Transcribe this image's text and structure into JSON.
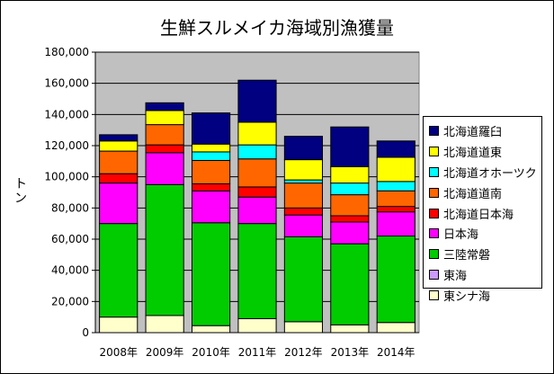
{
  "chart_data": {
    "type": "bar",
    "stacked": true,
    "title": "生鮮スルメイカ海域別漁獲量",
    "ylabel": "トン",
    "xlabel": "",
    "ylim": [
      0,
      180000
    ],
    "yticks": [
      "0",
      "20,000",
      "40,000",
      "60,000",
      "80,000",
      "100,000",
      "120,000",
      "140,000",
      "160,000",
      "180,000"
    ],
    "ytick_values": [
      0,
      20000,
      40000,
      60000,
      80000,
      100000,
      120000,
      140000,
      160000,
      180000
    ],
    "categories": [
      "2008年",
      "2009年",
      "2010年",
      "2011年",
      "2012年",
      "2013年",
      "2014年"
    ],
    "plot_background": "#C0C0C0",
    "grid": true,
    "legend_position": "right",
    "series": [
      {
        "name": "東シナ海",
        "color": "#FFFFCC",
        "values": [
          10000,
          11000,
          4500,
          9000,
          7000,
          5000,
          6500
        ]
      },
      {
        "name": "東海",
        "color": "#CC99FF",
        "values": [
          0,
          0,
          0,
          0,
          0,
          0,
          0
        ]
      },
      {
        "name": "三陸常磐",
        "color": "#00CC00",
        "values": [
          60000,
          84000,
          66000,
          61000,
          54500,
          52000,
          55500
        ]
      },
      {
        "name": "日本海",
        "color": "#FF00FF",
        "values": [
          26000,
          20500,
          20500,
          17000,
          14000,
          14000,
          15500
        ]
      },
      {
        "name": "北海道日本海",
        "color": "#FF0000",
        "values": [
          6000,
          5000,
          4500,
          6500,
          4500,
          4000,
          3500
        ]
      },
      {
        "name": "北海道道南",
        "color": "#FF6600",
        "values": [
          14500,
          13000,
          15000,
          18000,
          16000,
          13500,
          10000
        ]
      },
      {
        "name": "北海道オホーツク",
        "color": "#00FFFF",
        "values": [
          0,
          0,
          5500,
          9000,
          2000,
          7500,
          6000
        ]
      },
      {
        "name": "北海道道東",
        "color": "#FFFF00",
        "values": [
          6500,
          9000,
          5000,
          14500,
          13000,
          10500,
          15500
        ]
      },
      {
        "name": "北海道羅臼",
        "color": "#000080",
        "values": [
          4000,
          5000,
          20000,
          27000,
          15000,
          25500,
          10500
        ]
      }
    ]
  }
}
